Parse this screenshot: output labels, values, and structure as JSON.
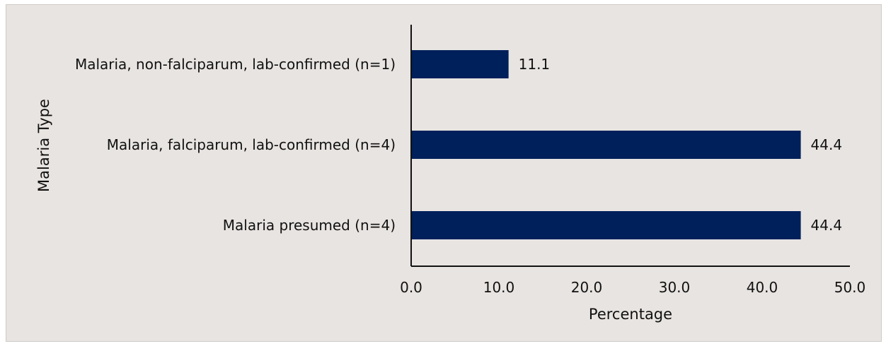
{
  "chart_data": {
    "type": "bar",
    "orientation": "horizontal",
    "categories": [
      "Malaria, non-falciparum, lab-confirmed (n=1)",
      "Malaria, falciparum, lab-confirmed (n=4)",
      "Malaria presumed (n=4)"
    ],
    "values": [
      11.1,
      44.4,
      44.4
    ],
    "data_labels": [
      "11.1",
      "44.4",
      "44.4"
    ],
    "xlabel": "Percentage",
    "ylabel": "Malaria Type",
    "xlim": [
      0,
      50
    ],
    "x_ticks": [
      "0.0",
      "10.0",
      "20.0",
      "30.0",
      "40.0",
      "50.0"
    ],
    "grid": false,
    "legend": "none",
    "bar_color": "#00205b",
    "background_color": "#e8e4e1"
  }
}
